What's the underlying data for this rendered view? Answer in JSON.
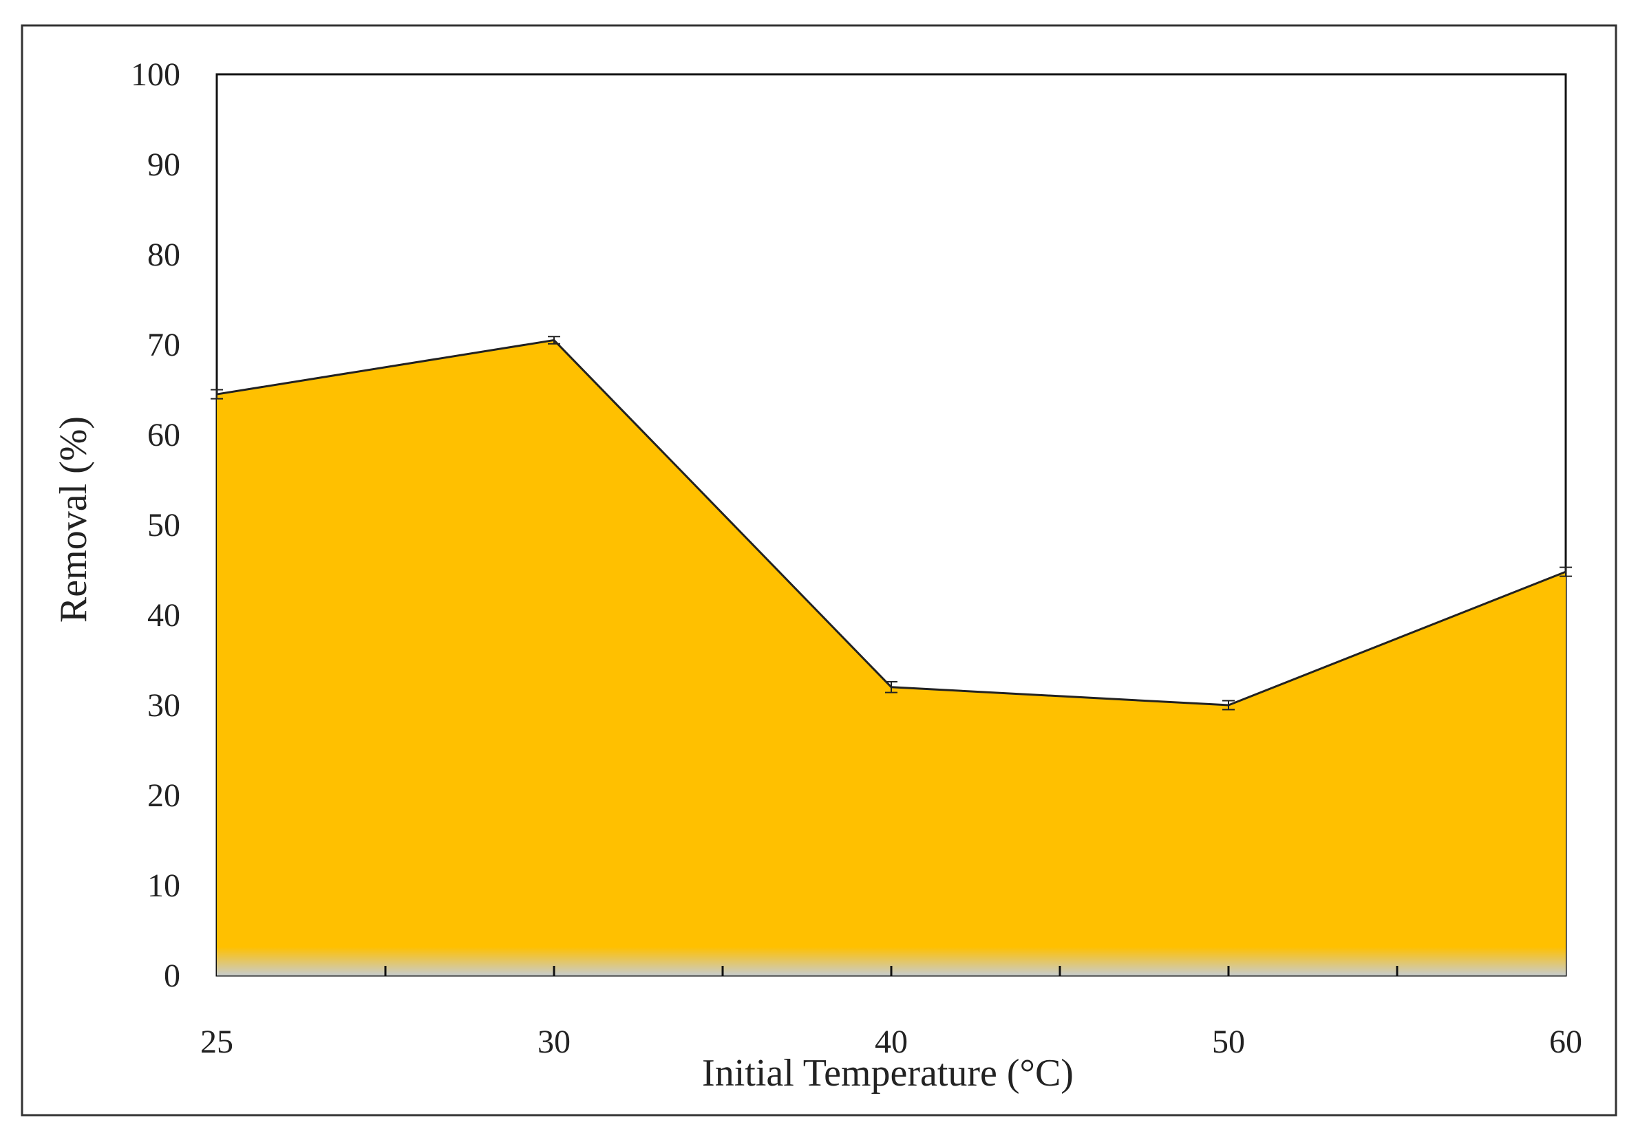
{
  "chart_data": {
    "type": "area",
    "xlabel": "Initial Temperature (°C)",
    "ylabel": "Removal (%)",
    "x_categories": [
      "25",
      "30",
      "40",
      "50",
      "60"
    ],
    "series": [
      {
        "values": [
          64.5,
          70.5,
          32.0,
          30.0,
          44.8
        ],
        "error": [
          0.5,
          0.4,
          0.6,
          0.5,
          0.5
        ]
      }
    ],
    "ylim": [
      0,
      100
    ],
    "yticks": [
      "0",
      "10",
      "20",
      "30",
      "40",
      "50",
      "60",
      "70",
      "80",
      "90",
      "100"
    ],
    "grid": false,
    "legend": "none",
    "colors": {
      "fill": "#FFC000",
      "fill_base": "#C8CCCC",
      "line": "#222222",
      "frame": "#111111"
    }
  }
}
